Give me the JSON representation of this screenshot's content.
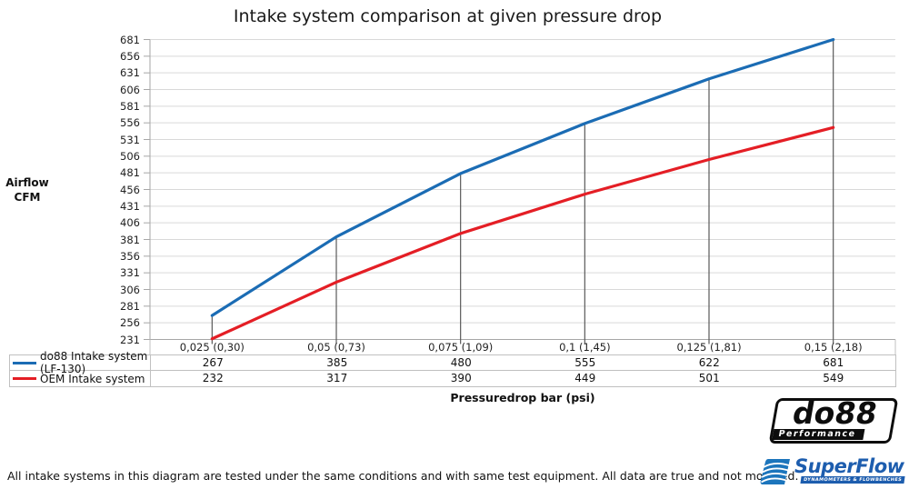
{
  "title": "Intake system comparison at given pressure drop",
  "y_axis": {
    "label_line1": "Airflow",
    "label_line2": "CFM"
  },
  "x_axis": {
    "title": "Pressuredrop bar (psi)"
  },
  "footer_note": "All intake systems in this diagram are tested under the same conditions and with same test equipment. All data are true and not modified.",
  "logos": {
    "do88": {
      "name": "do88",
      "subtitle": "Performance"
    },
    "superflow": {
      "name": "SuperFlow",
      "tagline": "DYNAMOMETERS & FLOWBENCHES"
    }
  },
  "colors": {
    "do88_series": "#1b6cb4",
    "oem_series": "#e41e25",
    "gridline": "#d9d9d9",
    "axis": "#a6a6a6",
    "dropline": "#595959",
    "table_border": "#c0c0c0",
    "superflow_blue": "#1d5dae",
    "swoosh_blue": "#1c75bc"
  },
  "chart_data": {
    "type": "line",
    "title": "Intake system comparison at given pressure drop",
    "xlabel": "Pressuredrop bar (psi)",
    "ylabel": "Airflow CFM",
    "categories": [
      "0,025 (0,30)",
      "0,05 (0,73)",
      "0,075 (1,09)",
      "0,1 (1,45)",
      "0,125 (1,81)",
      "0,15 (2,18)"
    ],
    "series": [
      {
        "name": "do88 Intake system (LF-130)",
        "color": "#1b6cb4",
        "values": [
          267,
          385,
          480,
          555,
          622,
          681
        ]
      },
      {
        "name": "OEM Intake system",
        "color": "#e41e25",
        "values": [
          232,
          317,
          390,
          449,
          501,
          549
        ]
      }
    ],
    "ylim": [
      231,
      681
    ],
    "yticks": [
      231,
      256,
      281,
      306,
      331,
      356,
      381,
      406,
      431,
      456,
      481,
      506,
      531,
      556,
      581,
      606,
      631,
      656,
      681
    ],
    "grid": true,
    "legend_position": "table-left",
    "droplines": "vertical lines at each category up to do88 series"
  }
}
